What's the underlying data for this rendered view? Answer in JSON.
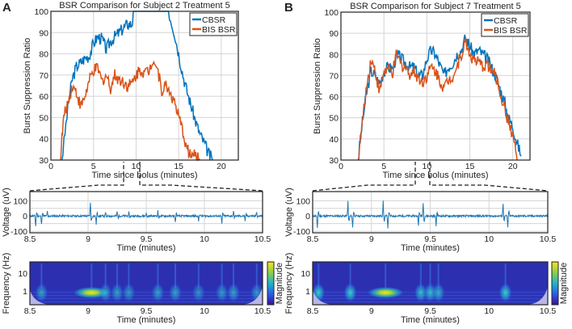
{
  "colors": {
    "cbsr": "#0072BD",
    "bis": "#D95319",
    "grid": "#d4d4d4",
    "trace": "#1f77b4"
  },
  "chart_data": [
    {
      "panel": "A",
      "type": "line",
      "title": "BSR Comparison for Subject 2 Treatment 5",
      "xlabel": "Time since bolus (minutes)",
      "ylabel": "Burst Suppression Ratio",
      "xlim": [
        0,
        22
      ],
      "ylim": [
        30,
        100
      ],
      "xticks": [
        0,
        5,
        10,
        15,
        20
      ],
      "yticks": [
        30,
        40,
        50,
        60,
        70,
        80,
        90,
        100
      ],
      "grid": true,
      "legend": "top-right",
      "series": [
        {
          "name": "CBSR",
          "x": [
            1.3,
            2,
            2.5,
            3,
            3.5,
            4,
            4.5,
            5,
            5.5,
            6,
            6.5,
            7,
            7.5,
            8,
            8.5,
            9,
            9.5,
            9.8,
            10.5,
            11.5,
            12.5,
            13.8,
            14.5,
            15,
            15.5,
            16,
            16.5,
            17,
            17.5,
            18,
            18.5,
            19
          ],
          "y": [
            30,
            55,
            68,
            74,
            76,
            78,
            79,
            85,
            88,
            87,
            82,
            86,
            88,
            90,
            92,
            94,
            94,
            100,
            100,
            100,
            100,
            100,
            90,
            80,
            70,
            62,
            55,
            48,
            42,
            38,
            33,
            30
          ]
        },
        {
          "name": "BIS BSR",
          "x": [
            1.1,
            1.5,
            2,
            2.5,
            3,
            3.5,
            4,
            4.5,
            5,
            5.5,
            6,
            6.5,
            7,
            7.5,
            8,
            8.5,
            9,
            9.5,
            10,
            10.5,
            11,
            11.5,
            12,
            12.5,
            13,
            13.5,
            14,
            14.5,
            15,
            15.5,
            16,
            16.5,
            17,
            17.5
          ],
          "y": [
            30,
            50,
            57,
            65,
            62,
            55,
            60,
            67,
            72,
            73,
            67,
            70,
            64,
            70,
            68,
            67,
            65,
            66,
            70,
            73,
            71,
            72,
            78,
            73,
            63,
            65,
            62,
            57,
            50,
            43,
            35,
            32,
            32,
            30
          ]
        }
      ]
    },
    {
      "panel": "B",
      "type": "line",
      "title": "BSR Comparison for Subject 7 Treatment 5",
      "xlabel": "Time since bolus (minutes)",
      "ylabel": "Burst Suppression Ratio",
      "xlim": [
        0,
        22
      ],
      "ylim": [
        30,
        100
      ],
      "xticks": [
        0,
        5,
        10,
        15,
        20
      ],
      "yticks": [
        30,
        40,
        50,
        60,
        70,
        80,
        90,
        100
      ],
      "grid": true,
      "legend": "top-right",
      "series": [
        {
          "name": "CBSR",
          "x": [
            2,
            2.5,
            3,
            3.5,
            4,
            4.5,
            5,
            5.5,
            6,
            6.5,
            7,
            7.5,
            8,
            8.5,
            9,
            9.5,
            10,
            10.5,
            11,
            11.5,
            12,
            12.5,
            13,
            13.5,
            14,
            14.5,
            15,
            15.5,
            16,
            16.5,
            17,
            17.5,
            18,
            18.5,
            19,
            19.5,
            20,
            20.5,
            21
          ],
          "y": [
            30,
            48,
            62,
            72,
            70,
            66,
            72,
            74,
            73,
            80,
            78,
            76,
            74,
            74,
            70,
            70,
            78,
            82,
            80,
            75,
            70,
            74,
            76,
            80,
            82,
            88,
            84,
            80,
            82,
            80,
            78,
            74,
            70,
            64,
            58,
            50,
            46,
            38,
            32
          ]
        },
        {
          "name": "BIS BSR",
          "x": [
            2,
            2.5,
            3,
            3.5,
            4,
            4.5,
            5,
            5.5,
            6,
            6.5,
            7,
            7.5,
            8,
            8.5,
            9,
            9.5,
            10,
            10.5,
            11,
            11.5,
            12,
            12.5,
            13,
            13.5,
            14,
            14.5,
            15,
            15.5,
            16,
            16.5,
            17,
            17.5,
            18,
            18.5,
            19,
            19.5,
            20,
            20.5
          ],
          "y": [
            30,
            48,
            65,
            78,
            72,
            62,
            72,
            73,
            71,
            80,
            75,
            74,
            71,
            72,
            69,
            67,
            70,
            74,
            72,
            68,
            64,
            68,
            70,
            74,
            80,
            86,
            80,
            77,
            76,
            74,
            76,
            72,
            70,
            62,
            55,
            48,
            42,
            30
          ]
        }
      ]
    },
    {
      "panel": "A-voltage",
      "type": "line",
      "xlabel": "Time (minutes)",
      "ylabel": "Voltage (uV)",
      "xlim": [
        8.5,
        10.5
      ],
      "ylim": [
        -110,
        160
      ],
      "xticks": [
        8.5,
        9,
        9.5,
        10,
        10.5
      ],
      "yticks": [
        -100,
        0,
        100
      ],
      "spikes": {
        "t": [
          8.55,
          8.6,
          8.65,
          9.02,
          9.07,
          9.15,
          9.25,
          9.35,
          9.5,
          9.6,
          9.75,
          9.95,
          10.15,
          10.25,
          10.35,
          10.45
        ],
        "amp": [
          -70,
          -60,
          30,
          90,
          -55,
          30,
          30,
          25,
          25,
          35,
          -45,
          -35,
          -55,
          30,
          -40,
          30
        ]
      }
    },
    {
      "panel": "A-spectrogram",
      "type": "heatmap",
      "xlabel": "Time (minutes)",
      "ylabel": "Frequency (Hz)",
      "colorbar_label": "Magnitude",
      "xlim": [
        8.5,
        10.5
      ],
      "xticks": [
        8.5,
        9,
        9.5,
        10,
        10.5
      ],
      "yticks": [
        "1",
        "10"
      ],
      "hotspots": [
        {
          "t": 9.03,
          "level": 1.0
        },
        {
          "t": 8.6,
          "level": 0.4
        },
        {
          "t": 9.15,
          "level": 0.4
        },
        {
          "t": 9.25,
          "level": 0.4
        },
        {
          "t": 9.35,
          "level": 0.35
        },
        {
          "t": 9.6,
          "level": 0.4
        },
        {
          "t": 9.75,
          "level": 0.4
        },
        {
          "t": 9.95,
          "level": 0.3
        },
        {
          "t": 10.15,
          "level": 0.35
        },
        {
          "t": 10.25,
          "level": 0.4
        },
        {
          "t": 10.45,
          "level": 0.35
        }
      ]
    },
    {
      "panel": "B-voltage",
      "type": "line",
      "xlabel": "Time (minutes)",
      "ylabel": "Voltage (uV)",
      "xlim": [
        8.5,
        10.5
      ],
      "ylim": [
        -110,
        160
      ],
      "xticks": [
        8.5,
        9,
        9.5,
        10,
        10.5
      ],
      "yticks": [
        -100,
        0,
        100
      ],
      "spikes": {
        "t": [
          8.54,
          8.8,
          8.84,
          9.1,
          9.14,
          9.4,
          9.44,
          9.55,
          10.12,
          10.16
        ],
        "amp": [
          -90,
          100,
          -80,
          100,
          -80,
          -60,
          90,
          -70,
          80,
          -80
        ]
      }
    },
    {
      "panel": "B-spectrogram",
      "type": "heatmap",
      "xlabel": "Time (minutes)",
      "ylabel": "Frequency (Hz)",
      "colorbar_label": "Magnitude",
      "xlim": [
        8.5,
        10.5
      ],
      "xticks": [
        8.5,
        9,
        9.5,
        10,
        10.5
      ],
      "yticks": [
        "1",
        "10"
      ],
      "hotspots": [
        {
          "t": 8.55,
          "level": 0.7
        },
        {
          "t": 8.82,
          "level": 0.7
        },
        {
          "t": 9.12,
          "level": 0.9
        },
        {
          "t": 9.42,
          "level": 0.6
        },
        {
          "t": 9.5,
          "level": 0.6
        },
        {
          "t": 9.57,
          "level": 0.5
        },
        {
          "t": 10.14,
          "level": 0.7
        }
      ]
    }
  ],
  "panel_labels": [
    "A",
    "B"
  ]
}
